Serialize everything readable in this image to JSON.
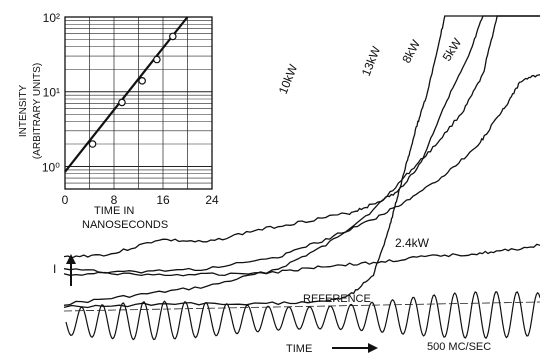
{
  "chart_data": [
    {
      "type": "line",
      "title": "",
      "xlabel": "TIME",
      "ylabel": "I",
      "annotations": [
        "TIME",
        "I",
        "500 MC/SEC",
        "REFERENCE"
      ],
      "series": [
        {
          "name": "10 kW",
          "x": [
            0,
            10,
            20,
            30,
            40,
            50,
            60,
            65,
            70,
            75,
            80,
            85,
            88,
            100
          ],
          "y": [
            0.18,
            0.19,
            0.24,
            0.23,
            0.27,
            0.3,
            0.33,
            0.36,
            0.4,
            0.5,
            0.7,
            0.86,
            1.0,
            1.0
          ]
        },
        {
          "name": "13 kW",
          "x": [
            0,
            20,
            40,
            55,
            60,
            65,
            68,
            70,
            72,
            74,
            76,
            78,
            80,
            100
          ],
          "y": [
            0.01,
            0.02,
            0.02,
            0.03,
            0.05,
            0.12,
            0.26,
            0.38,
            0.5,
            0.62,
            0.72,
            0.85,
            1.0,
            1.0
          ]
        },
        {
          "name": "8 kW",
          "x": [
            0,
            15,
            30,
            45,
            55,
            65,
            72,
            78,
            84,
            88,
            91,
            100
          ],
          "y": [
            0.02,
            0.05,
            0.08,
            0.14,
            0.22,
            0.34,
            0.46,
            0.56,
            0.68,
            0.8,
            1.0,
            1.0
          ]
        },
        {
          "name": "5 kW",
          "x": [
            0,
            15,
            30,
            45,
            55,
            65,
            72,
            80,
            87,
            90,
            93,
            96,
            100
          ],
          "y": [
            0.12,
            0.13,
            0.14,
            0.18,
            0.24,
            0.31,
            0.37,
            0.46,
            0.56,
            0.63,
            0.7,
            0.78,
            0.8
          ]
        },
        {
          "name": "2.4 kW",
          "x": [
            0,
            15,
            30,
            45,
            55,
            65,
            75,
            85,
            92,
            100
          ],
          "y": [
            0.14,
            0.12,
            0.12,
            0.13,
            0.15,
            0.16,
            0.18,
            0.19,
            0.2,
            0.22
          ]
        }
      ],
      "series_labels": [
        "10 kW",
        "13 kW",
        "8 kW",
        "5 kW",
        "2.4 kW"
      ],
      "reference_label": "REFERENCE",
      "frequency_label": "500 MC/SEC"
    },
    {
      "type": "scatter",
      "title": "",
      "xlabel": "TIME IN NANOSECONDS",
      "ylabel": "INTENSITY (ARBITRARY UNITS)",
      "xlim": [
        0,
        24
      ],
      "ylim": [
        0.5,
        100
      ],
      "yscale": "log",
      "grid": true,
      "x_ticks": [
        "0",
        "8",
        "16",
        "24"
      ],
      "y_ticks": [
        "10⁰",
        "10¹",
        "10²"
      ],
      "x": [
        4.5,
        9.3,
        12.6,
        15.0,
        17.6
      ],
      "y": [
        2.0,
        7.2,
        14.0,
        27.0,
        55.0
      ],
      "fit_line": {
        "x": [
          0,
          20
        ],
        "y": [
          0.85,
          100
        ]
      }
    }
  ]
}
